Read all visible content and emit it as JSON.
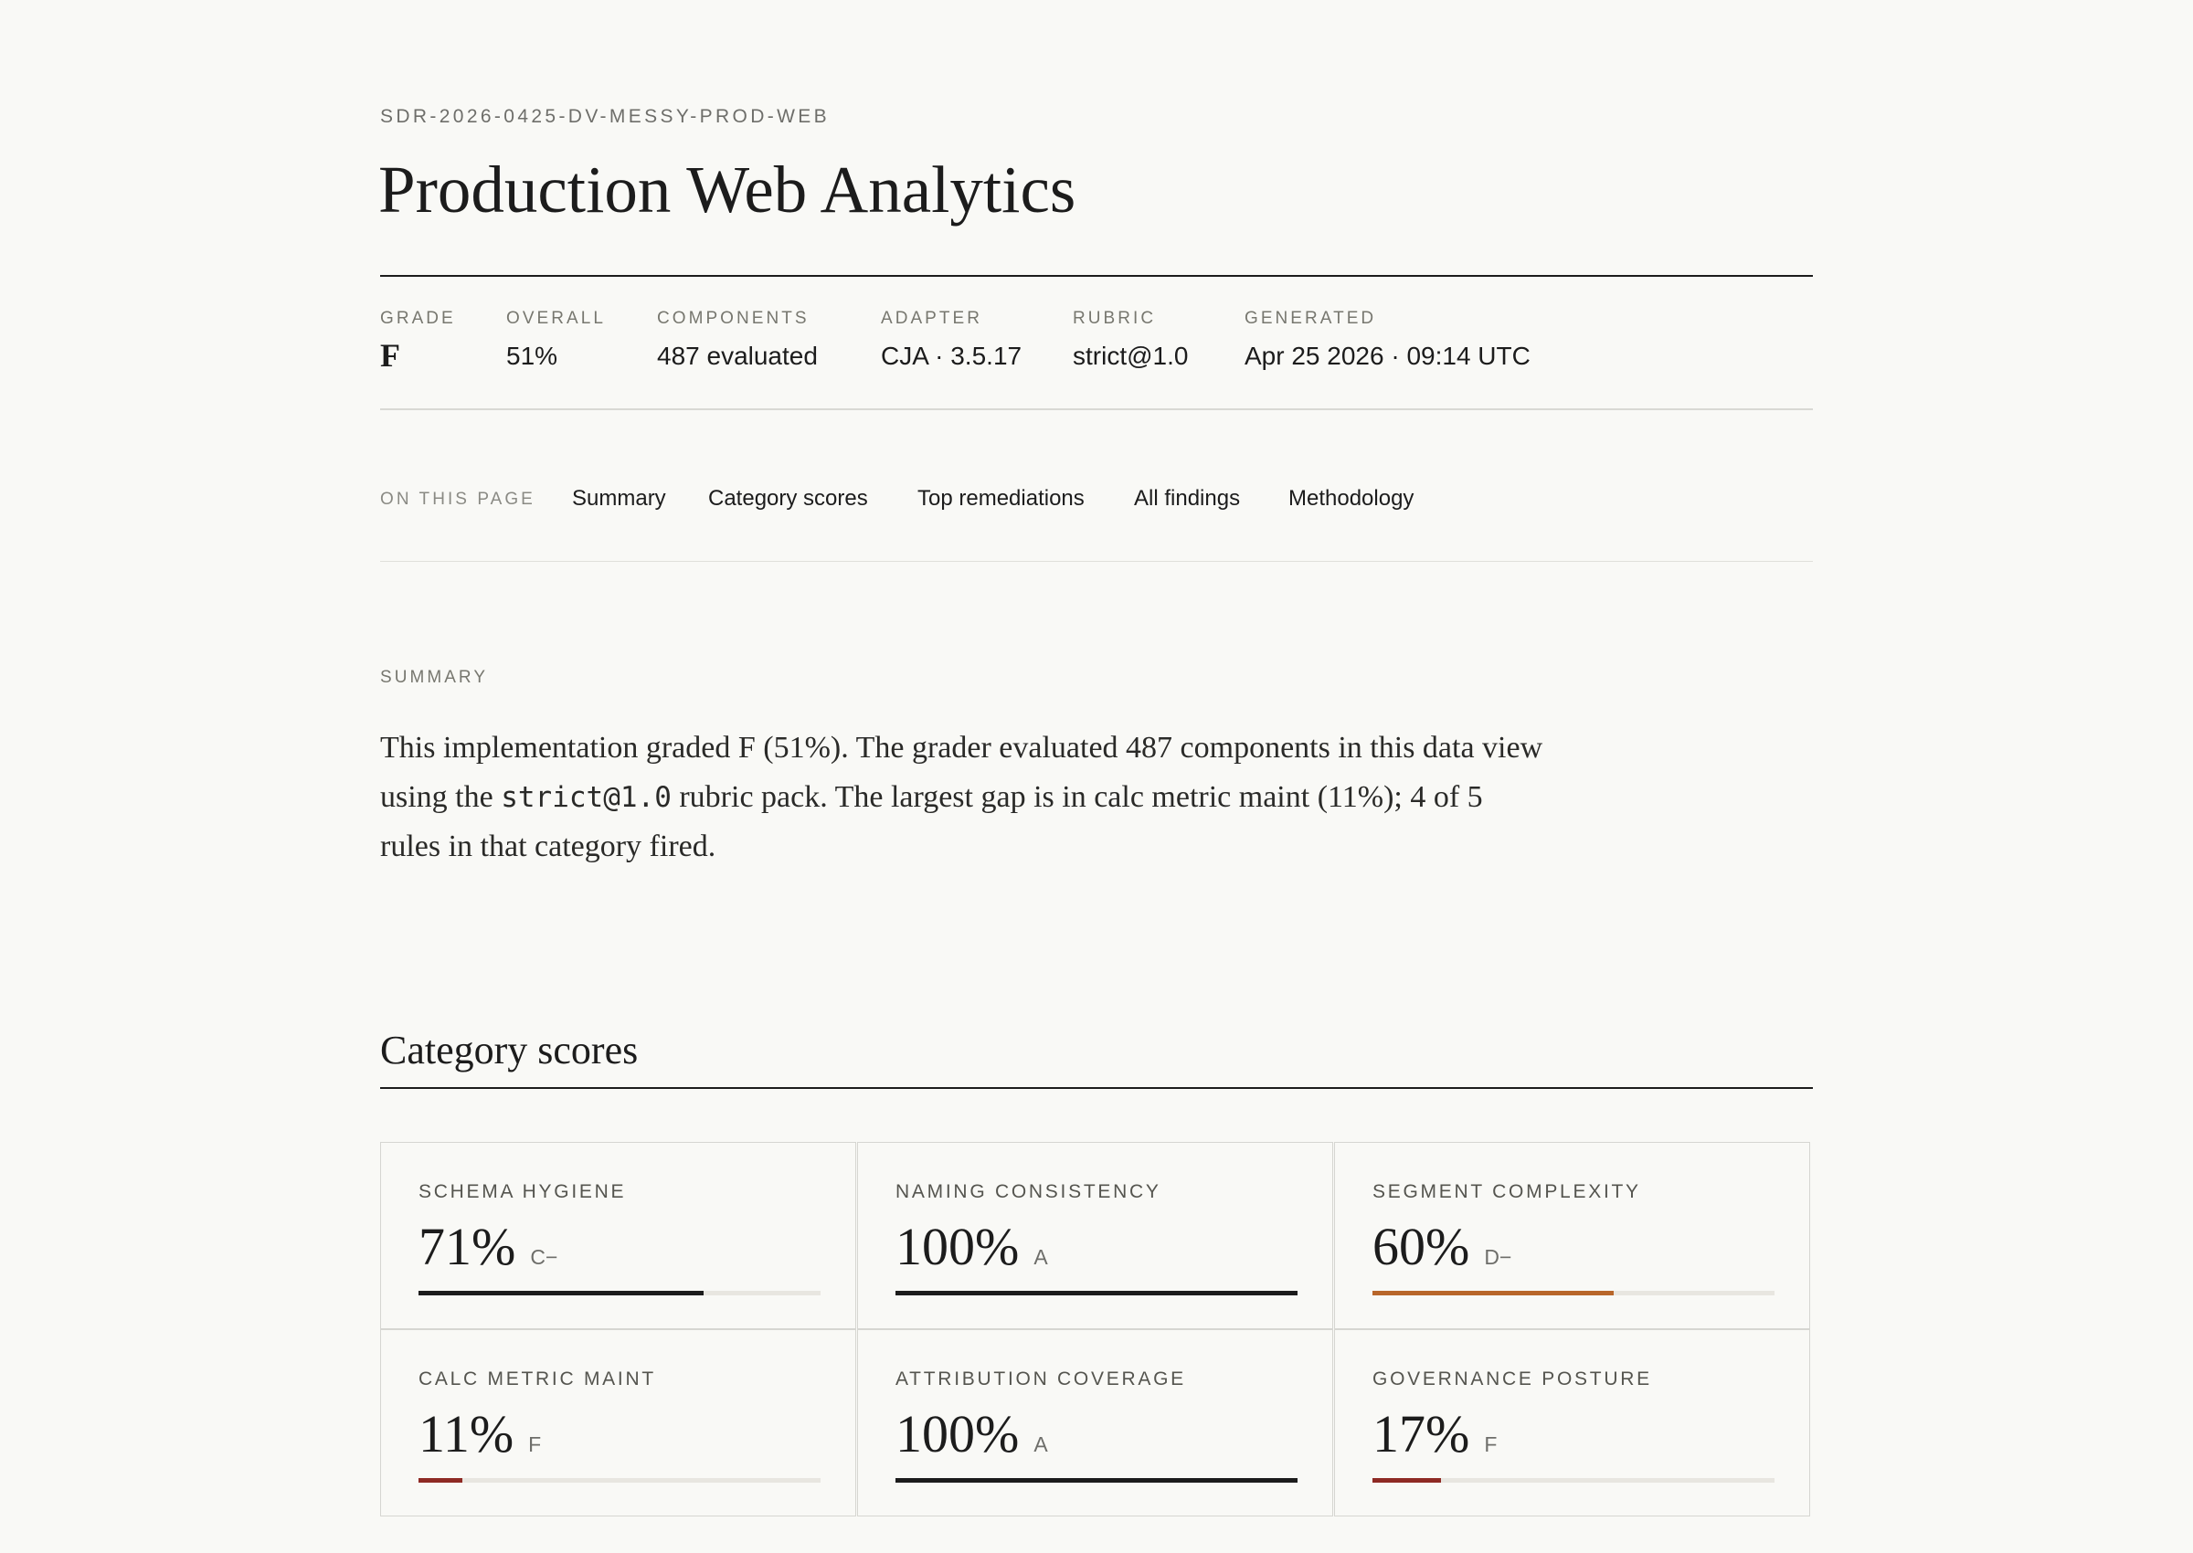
{
  "header": {
    "report_id": "SDR-2026-0425-DV-MESSY-PROD-WEB",
    "title": "Production Web Analytics"
  },
  "meta": [
    {
      "label": "GRADE",
      "value": "F"
    },
    {
      "label": "OVERALL",
      "value": "51%"
    },
    {
      "label": "COMPONENTS",
      "value": "487 evaluated"
    },
    {
      "label": "ADAPTER",
      "value": "CJA · 3.5.17"
    },
    {
      "label": "RUBRIC",
      "value": "strict@1.0"
    },
    {
      "label": "GENERATED",
      "value": "Apr 25 2026 · 09:14 UTC"
    }
  ],
  "nav": {
    "label": "ON THIS PAGE",
    "links": [
      "Summary",
      "Category scores",
      "Top remediations",
      "All findings",
      "Methodology"
    ]
  },
  "summary": {
    "heading": "SUMMARY",
    "text_before": "This implementation graded F (51%). The grader evaluated 487 components in this data view using the",
    "code": "strict@1.0",
    "text_after": "rubric pack. The largest gap is in calc metric maint (11%); 4 of 5 rules in that category fired."
  },
  "category_scores": {
    "heading": "Category scores",
    "max": 100,
    "items": [
      {
        "name": "SCHEMA HYGIENE",
        "value": 71,
        "value_label": "71%",
        "grade": "C−",
        "color": "#1c1c1c"
      },
      {
        "name": "NAMING CONSISTENCY",
        "value": 100,
        "value_label": "100%",
        "grade": "A",
        "color": "#1c1c1c"
      },
      {
        "name": "SEGMENT COMPLEXITY",
        "value": 60,
        "value_label": "60%",
        "grade": "D−",
        "color": "#b8662a"
      },
      {
        "name": "CALC METRIC MAINT",
        "value": 11,
        "value_label": "11%",
        "grade": "F",
        "color": "#8e2a24"
      },
      {
        "name": "ATTRIBUTION COVERAGE",
        "value": 100,
        "value_label": "100%",
        "grade": "A",
        "color": "#1c1c1c"
      },
      {
        "name": "GOVERNANCE POSTURE",
        "value": 17,
        "value_label": "17%",
        "grade": "F",
        "color": "#8e2a24"
      }
    ]
  }
}
